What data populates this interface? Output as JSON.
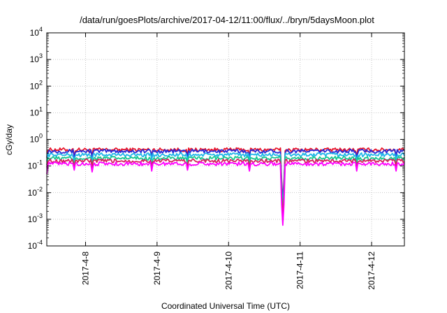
{
  "chart_data": {
    "type": "line",
    "title": "/data/run/goesPlots/archive/2017-04-12/11:00/flux/../bryn/5daysMoon.plot",
    "xlabel": "Coordinated Universal Time (UTC)",
    "ylabel": "cGy/day",
    "yscale": "log",
    "ylim": [
      0.0001,
      10000
    ],
    "xlim": [
      "2017-04-07 11:00",
      "2017-04-12 11:00"
    ],
    "grid": true,
    "x_ticks": [
      "2017-4-8",
      "2017-4-9",
      "2017-4-10",
      "2017-4-11",
      "2017-4-12"
    ],
    "y_ticks": [
      {
        "exp": "-4",
        "value": 0.0001
      },
      {
        "exp": "-3",
        "value": 0.001
      },
      {
        "exp": "-2",
        "value": 0.01
      },
      {
        "exp": "-1",
        "value": 0.1
      },
      {
        "exp": "0",
        "value": 1
      },
      {
        "exp": "1",
        "value": 10
      },
      {
        "exp": "2",
        "value": 100
      },
      {
        "exp": "3",
        "value": 1000
      },
      {
        "exp": "4",
        "value": 10000
      }
    ],
    "series": [
      {
        "color": "#e8142a",
        "baseline": 0.42,
        "dips": [
          {
            "x": "2017-04-07 11:00",
            "value": 0.22
          },
          {
            "x": "2017-04-07 20:00",
            "value": 0.25
          },
          {
            "x": "2017-04-08 02:00",
            "value": 0.24
          },
          {
            "x": "2017-04-08 22:00",
            "value": 0.26
          },
          {
            "x": "2017-04-09 10:00",
            "value": 0.26
          },
          {
            "x": "2017-04-10 07:00",
            "value": 0.25
          },
          {
            "x": "2017-04-10 18:00",
            "value": 0.005
          },
          {
            "x": "2017-04-11 19:00",
            "value": 0.25
          },
          {
            "x": "2017-04-12 08:00",
            "value": 0.26
          }
        ]
      },
      {
        "color": "#2a2ad6",
        "baseline": 0.37,
        "dips": [
          {
            "x": "2017-04-07 11:00",
            "value": 0.2
          },
          {
            "x": "2017-04-07 20:00",
            "value": 0.22
          },
          {
            "x": "2017-04-08 02:00",
            "value": 0.21
          },
          {
            "x": "2017-04-08 22:00",
            "value": 0.23
          },
          {
            "x": "2017-04-09 10:00",
            "value": 0.23
          },
          {
            "x": "2017-04-10 07:00",
            "value": 0.22
          },
          {
            "x": "2017-04-10 18:00",
            "value": 0.004
          },
          {
            "x": "2017-04-11 19:00",
            "value": 0.22
          },
          {
            "x": "2017-04-12 08:00",
            "value": 0.23
          }
        ]
      },
      {
        "color": "#1fb6e8",
        "baseline": 0.27,
        "dips": [
          {
            "x": "2017-04-07 11:00",
            "value": 0.15
          },
          {
            "x": "2017-04-07 20:00",
            "value": 0.17
          },
          {
            "x": "2017-04-08 02:00",
            "value": 0.16
          },
          {
            "x": "2017-04-08 22:00",
            "value": 0.17
          },
          {
            "x": "2017-04-09 10:00",
            "value": 0.17
          },
          {
            "x": "2017-04-10 07:00",
            "value": 0.16
          },
          {
            "x": "2017-04-10 18:00",
            "value": 0.003
          },
          {
            "x": "2017-04-11 19:00",
            "value": 0.16
          },
          {
            "x": "2017-04-12 08:00",
            "value": 0.17
          }
        ]
      },
      {
        "color": "#16c78f",
        "baseline": 0.2,
        "dips": [
          {
            "x": "2017-04-07 11:00",
            "value": 0.11
          },
          {
            "x": "2017-04-07 20:00",
            "value": 0.12
          },
          {
            "x": "2017-04-08 02:00",
            "value": 0.12
          },
          {
            "x": "2017-04-08 22:00",
            "value": 0.12
          },
          {
            "x": "2017-04-09 10:00",
            "value": 0.12
          },
          {
            "x": "2017-04-10 07:00",
            "value": 0.12
          },
          {
            "x": "2017-04-10 18:00",
            "value": 0.002
          },
          {
            "x": "2017-04-11 19:00",
            "value": 0.12
          },
          {
            "x": "2017-04-12 08:00",
            "value": 0.12
          }
        ]
      },
      {
        "color": "#d4205a",
        "baseline": 0.16,
        "dips": [
          {
            "x": "2017-04-07 11:00",
            "value": 0.09
          },
          {
            "x": "2017-04-07 20:00",
            "value": 0.09
          },
          {
            "x": "2017-04-08 02:00",
            "value": 0.09
          },
          {
            "x": "2017-04-08 22:00",
            "value": 0.1
          },
          {
            "x": "2017-04-09 10:00",
            "value": 0.1
          },
          {
            "x": "2017-04-10 07:00",
            "value": 0.09
          },
          {
            "x": "2017-04-10 18:00",
            "value": 0.0012
          },
          {
            "x": "2017-04-11 19:00",
            "value": 0.09
          },
          {
            "x": "2017-04-12 08:00",
            "value": 0.1
          }
        ]
      },
      {
        "color": "#ff00ff",
        "baseline": 0.125,
        "dips": [
          {
            "x": "2017-04-07 11:00",
            "value": 0.05
          },
          {
            "x": "2017-04-07 20:00",
            "value": 0.07
          },
          {
            "x": "2017-04-08 02:00",
            "value": 0.06
          },
          {
            "x": "2017-04-08 22:00",
            "value": 0.065
          },
          {
            "x": "2017-04-09 10:00",
            "value": 0.07
          },
          {
            "x": "2017-04-10 07:00",
            "value": 0.065
          },
          {
            "x": "2017-04-10 18:00",
            "value": 0.0006
          },
          {
            "x": "2017-04-11 19:00",
            "value": 0.065
          },
          {
            "x": "2017-04-12 08:00",
            "value": 0.065
          }
        ]
      }
    ]
  }
}
